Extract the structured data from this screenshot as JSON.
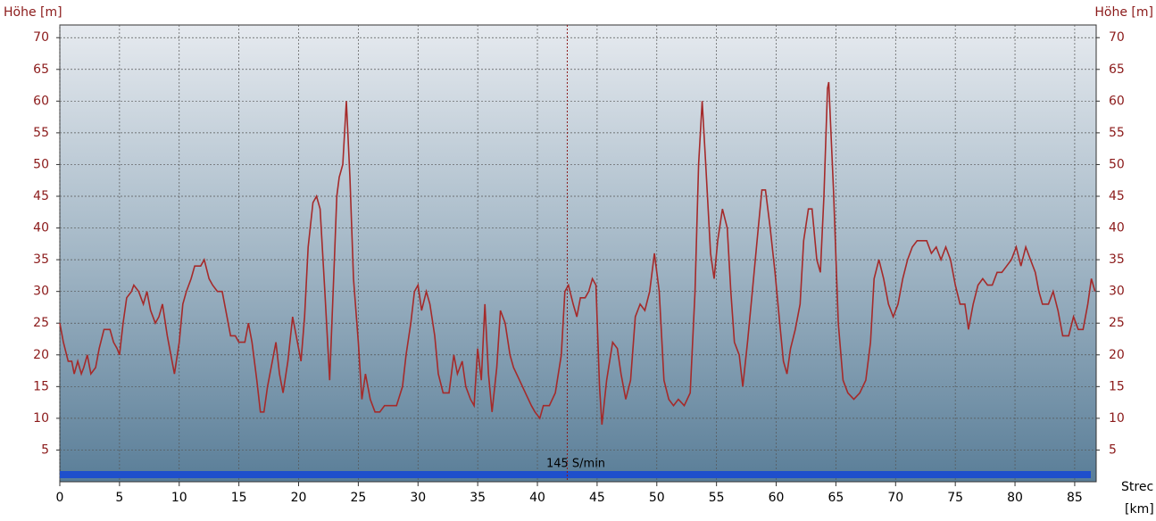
{
  "chart_data": {
    "type": "line",
    "y_label": "Höhe [m]",
    "x_label": "Strec",
    "x_unit": "[km]",
    "annotation": "145 S/min",
    "color": "#a52a2a",
    "marker_x": 42.5,
    "xlim": [
      0,
      86.8
    ],
    "xticks": [
      0,
      5,
      10,
      15,
      20,
      25,
      30,
      35,
      40,
      45,
      50,
      55,
      60,
      65,
      70,
      75,
      80,
      85
    ],
    "ylim": [
      0,
      72
    ],
    "yticks": [
      5,
      10,
      15,
      20,
      25,
      30,
      35,
      40,
      45,
      50,
      55,
      60,
      65,
      70
    ],
    "grid": true,
    "x": [
      0,
      0.3,
      0.7,
      1,
      1.2,
      1.5,
      1.8,
      2,
      2.3,
      2.6,
      3,
      3.3,
      3.7,
      4.2,
      4.5,
      4.8,
      5,
      5.3,
      5.6,
      6,
      6.2,
      6.6,
      7,
      7.3,
      7.6,
      8,
      8.3,
      8.6,
      9,
      9.3,
      9.6,
      10,
      10.3,
      10.6,
      11,
      11.3,
      11.8,
      12.1,
      12.5,
      12.8,
      13.2,
      13.6,
      14,
      14.3,
      14.7,
      15,
      15.5,
      15.8,
      16.1,
      16.5,
      16.8,
      17.1,
      17.4,
      17.8,
      18.1,
      18.4,
      18.7,
      19.1,
      19.5,
      19.9,
      20.2,
      20.5,
      20.8,
      21.2,
      21.5,
      21.8,
      22.2,
      22.6,
      23,
      23.2,
      23.4,
      23.7,
      24,
      24.3,
      24.6,
      25,
      25.3,
      25.6,
      26,
      26.4,
      26.8,
      27.2,
      27.7,
      28.2,
      28.7,
      29,
      29.4,
      29.7,
      30,
      30.3,
      30.7,
      31,
      31.4,
      31.7,
      32.1,
      32.6,
      33,
      33.3,
      33.7,
      34,
      34.4,
      34.7,
      35,
      35.3,
      35.6,
      35.9,
      36.2,
      36.6,
      36.9,
      37.3,
      37.7,
      38,
      38.5,
      39,
      39.5,
      39.8,
      40.2,
      40.5,
      41,
      41.5,
      42,
      42.3,
      42.6,
      43,
      43.3,
      43.6,
      44,
      44.3,
      44.6,
      44.9,
      45.2,
      45.4,
      45.8,
      46.3,
      46.7,
      47,
      47.4,
      47.8,
      48.2,
      48.6,
      49,
      49.4,
      49.8,
      50.2,
      50.6,
      51,
      51.4,
      51.8,
      52.3,
      52.8,
      53.2,
      53.5,
      53.8,
      54.1,
      54.5,
      54.8,
      55.1,
      55.5,
      55.9,
      56.2,
      56.5,
      56.9,
      57.2,
      57.6,
      58,
      58.4,
      58.8,
      59.1,
      59.5,
      59.9,
      60.3,
      60.6,
      60.9,
      61.2,
      61.6,
      62,
      62.3,
      62.7,
      63,
      63.4,
      63.7,
      64,
      64.3,
      64.4,
      64.8,
      65.2,
      65.6,
      66,
      66.5,
      67,
      67.5,
      67.9,
      68.2,
      68.6,
      69,
      69.4,
      69.8,
      70.2,
      70.6,
      71,
      71.4,
      71.8,
      72.2,
      72.6,
      73,
      73.4,
      73.8,
      74.2,
      74.6,
      75,
      75.4,
      75.8,
      76.1,
      76.5,
      76.9,
      77.3,
      77.7,
      78.1,
      78.5,
      78.9,
      79.3,
      79.7,
      80.1,
      80.5,
      80.9,
      81.3,
      81.7,
      82,
      82.3,
      82.8,
      83.2,
      83.6,
      84,
      84.5,
      84.9,
      85.3,
      85.7,
      86.1,
      86.4,
      86.7
    ],
    "values": [
      25,
      22,
      19,
      19,
      17,
      19,
      17,
      18,
      20,
      17,
      18,
      21,
      24,
      24,
      22,
      21,
      20,
      25,
      29,
      30,
      31,
      30,
      28,
      30,
      27,
      25,
      26,
      28,
      23,
      20,
      17,
      22,
      28,
      30,
      32,
      34,
      34,
      35,
      32,
      31,
      30,
      30,
      26,
      23,
      23,
      22,
      22,
      25,
      22,
      16,
      11,
      11,
      15,
      19,
      22,
      17,
      14,
      19,
      26,
      22,
      19,
      26,
      37,
      44,
      45,
      43,
      30,
      16,
      35,
      45,
      48,
      50,
      60,
      48,
      32,
      22,
      13,
      17,
      13,
      11,
      11,
      12,
      12,
      12,
      15,
      20,
      25,
      30,
      31,
      27,
      30,
      28,
      23,
      17,
      14,
      14,
      20,
      17,
      19,
      15,
      13,
      12,
      21,
      16,
      28,
      17,
      11,
      18,
      27,
      25,
      20,
      18,
      16,
      14,
      12,
      11,
      10,
      12,
      12,
      14,
      20,
      30,
      31,
      28,
      26,
      29,
      29,
      30,
      32,
      31,
      15,
      9,
      16,
      22,
      21,
      17,
      13,
      16,
      26,
      28,
      27,
      30,
      36,
      30,
      16,
      13,
      12,
      13,
      12,
      14,
      30,
      50,
      60,
      50,
      36,
      32,
      38,
      43,
      40,
      30,
      22,
      20,
      15,
      22,
      30,
      38,
      46,
      46,
      40,
      33,
      25,
      19,
      17,
      21,
      24,
      28,
      38,
      43,
      43,
      35,
      33,
      45,
      62,
      63,
      46,
      25,
      16,
      14,
      13,
      14,
      16,
      22,
      32,
      35,
      32,
      28,
      26,
      28,
      32,
      35,
      37,
      38,
      38,
      38,
      36,
      37,
      35,
      37,
      35,
      31,
      28,
      28,
      24,
      28,
      31,
      32,
      31,
      31,
      33,
      33,
      34,
      35,
      37,
      34,
      37,
      35,
      33,
      30,
      28,
      28,
      30,
      27,
      23,
      23,
      26,
      24,
      24,
      28,
      32,
      30
    ]
  }
}
